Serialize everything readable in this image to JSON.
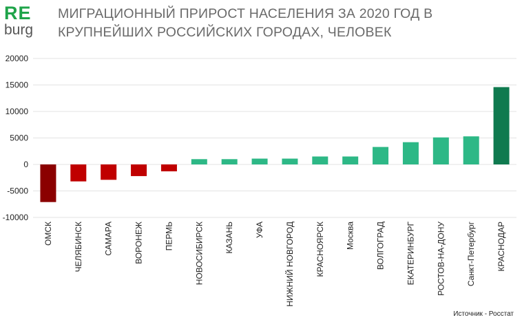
{
  "brand": {
    "line1": "RE",
    "line2": "burg",
    "accent": "#1fa44a",
    "line2_color": "#555555"
  },
  "title": "МИГРАЦИОННЫЙ ПРИРОСТ НАСЕЛЕНИЯ ЗА 2020 ГОД В КРУПНЕЙШИХ РОССИЙСКИХ ГОРОДАХ, ЧЕЛОВЕК",
  "source": "Источник - Росстат",
  "chart_data": {
    "type": "bar",
    "categories": [
      "ОМСК",
      "ЧЕЛЯБИНСК",
      "САМАРА",
      "ВОРОНЕЖ",
      "ПЕРМЬ",
      "НОВОСИБИРСК",
      "КАЗАНЬ",
      "УФА",
      "НИЖНИЙ НОВГОРОД",
      "КРАСНОЯРСК",
      "Москва",
      "ВОЛГОГРАД",
      "ЕКАТЕРИНБУРГ",
      "РОСТОВ-НА-ДОНУ",
      "Санкт-Петербург",
      "КРАСНОДАР"
    ],
    "values": [
      -7100,
      -3200,
      -2900,
      -2200,
      -1300,
      1000,
      1000,
      1100,
      1100,
      1500,
      1500,
      3300,
      4200,
      5100,
      5300,
      14600
    ],
    "colors": [
      "#8b0000",
      "#c00000",
      "#c00000",
      "#c00000",
      "#c00000",
      "#2db886",
      "#2db886",
      "#2db886",
      "#2db886",
      "#2db886",
      "#2db886",
      "#2db886",
      "#2db886",
      "#2db886",
      "#2db886",
      "#0f7a4f"
    ],
    "yticks": [
      20000,
      15000,
      10000,
      5000,
      0,
      -5000,
      -10000
    ],
    "ylim": [
      -10000,
      20000
    ],
    "grid": true,
    "xlabel": "",
    "ylabel": ""
  }
}
